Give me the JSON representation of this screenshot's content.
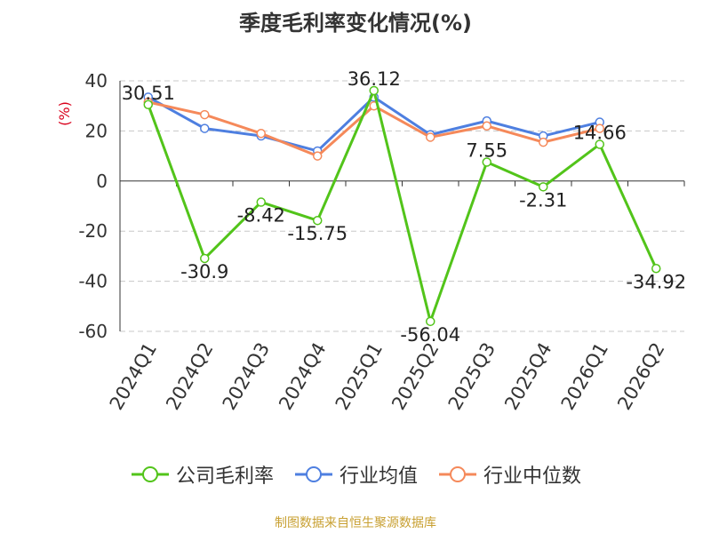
{
  "chart_data": {
    "type": "line",
    "title": "季度毛利率变化情况(%)",
    "ylabel": "(%)",
    "categories": [
      "2024Q1",
      "2024Q2",
      "2024Q3",
      "2024Q4",
      "2025Q1",
      "2025Q2",
      "2025Q3",
      "2025Q4",
      "2026Q1",
      "2026Q2"
    ],
    "ylim": [
      -60,
      40
    ],
    "yticks": [
      40,
      20,
      0,
      -20,
      -40,
      -60
    ],
    "grid": true,
    "legend_position": "bottom",
    "series": [
      {
        "name": "公司毛利率",
        "color": "#52c41a",
        "values": [
          30.51,
          -30.9,
          -8.42,
          -15.75,
          36.12,
          -56.04,
          7.55,
          -2.31,
          14.66,
          -34.92
        ],
        "labels": [
          "30.51",
          "-30.9",
          "-8.42",
          "-15.75",
          "36.12",
          "-56.04",
          "7.55",
          "-2.31",
          "14.66",
          "-34.92"
        ]
      },
      {
        "name": "行业均值",
        "color": "#4e7fe0",
        "values": [
          33.5,
          21.0,
          18.0,
          12.0,
          33.5,
          18.5,
          24.0,
          18.0,
          23.5,
          null
        ]
      },
      {
        "name": "行业中位数",
        "color": "#f5895a",
        "values": [
          31.5,
          26.5,
          19.0,
          10.0,
          30.0,
          17.5,
          22.0,
          15.5,
          21.0,
          null
        ]
      }
    ]
  },
  "footer": {
    "source": "制图数据来自恒生聚源数据库"
  }
}
